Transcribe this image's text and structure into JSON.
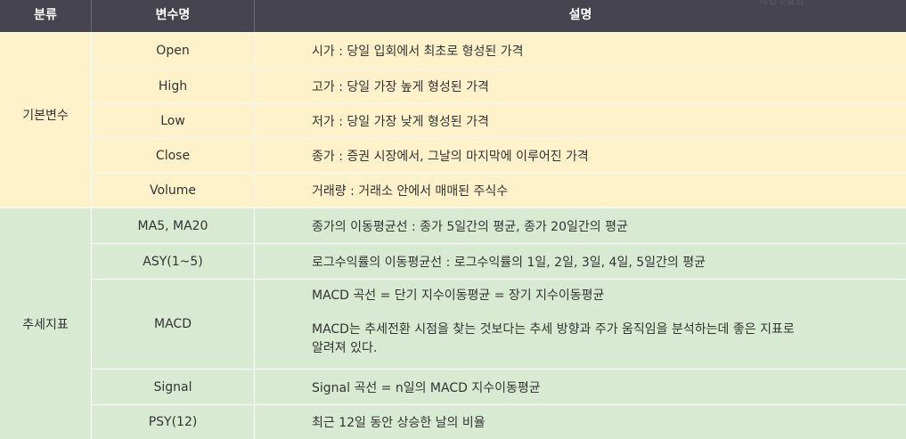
{
  "header": {
    "col_category": "분류",
    "col_variable": "변수명",
    "col_description": "설명",
    "corner_note": "배경및컬럼"
  },
  "groups": [
    {
      "label": "기본변수",
      "rows": [
        {
          "variable": "Open",
          "description": "시가 : 당일 입회에서 최초로 형성된 가격"
        },
        {
          "variable": "High",
          "description": "고가 : 당일 가장 높게 형성된 가격"
        },
        {
          "variable": "Low",
          "description": "저가 : 당일 가장 낮게 형성된 가격"
        },
        {
          "variable": "Close",
          "description": "종가 : 증권 시장에서, 그날의 마지막에 이루어진 가격"
        },
        {
          "variable": "Volume",
          "description": "거래량 : 거래소 안에서 매매된 주식수"
        }
      ]
    },
    {
      "label": "추세지표",
      "rows": [
        {
          "variable": "MA5, MA20",
          "description": "종가의 이동평균선 : 종가 5일간의 평균, 종가 20일간의 평균"
        },
        {
          "variable": "ASY(1~5)",
          "description": "로그수익률의 이동평균선 : 로그수익률의 1일, 2일, 3일, 4일, 5일간의 평균"
        },
        {
          "variable": "MACD",
          "description_lines": [
            "MACD 곡선 = 단기 지수이동평균 = 장기 지수이동평균",
            "MACD는 추세전환 시점을 찾는 것보다는 추세 방향과 주가 움직임을 분석하는데 좋은 지표로",
            "알려져 있다."
          ]
        },
        {
          "variable": "Signal",
          "description": "Signal 곡선 =  n일의 MACD 지수이동평균"
        },
        {
          "variable": "PSY(12)",
          "description": "최근 12일 동안 상승한 날의 비율"
        }
      ]
    }
  ],
  "colors": {
    "header_bg": "#45444f",
    "basic_group_bg": "#fff2cb",
    "trend_group_bg": "#d9ead3"
  }
}
